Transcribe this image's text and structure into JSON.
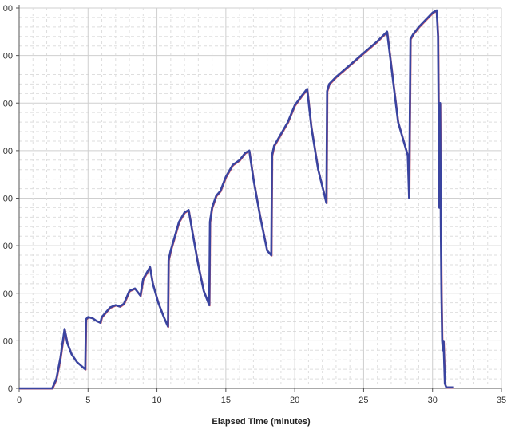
{
  "chart_data": {
    "type": "line",
    "title": "",
    "xlabel": "Elapsed Time (minutes)",
    "ylabel": "",
    "xlim": [
      0,
      35
    ],
    "ylim": [
      0,
      8
    ],
    "xticks": [
      "0",
      "5",
      "10",
      "15",
      "20",
      "25",
      "30",
      "35"
    ],
    "yticks_partial": [
      "0",
      "00",
      "00",
      "00",
      "00",
      "00",
      "00",
      "00",
      "00"
    ],
    "grid": true,
    "legend": "none",
    "colors": {
      "series_main": "#3a44a0",
      "series_trace": "#d0303c",
      "grid_major": "#cfcfcf",
      "grid_minor": "#dedede",
      "axis": "#555555"
    },
    "series": [
      {
        "color": "#3a44a0",
        "x": [
          0.0,
          2.4,
          2.7,
          3.0,
          3.3,
          3.5,
          3.8,
          4.2,
          4.6,
          4.8,
          4.85,
          5.0,
          5.3,
          5.6,
          5.9,
          6.0,
          6.3,
          6.6,
          7.0,
          7.3,
          7.6,
          8.0,
          8.4,
          8.8,
          9.0,
          9.3,
          9.5,
          9.7,
          10.1,
          10.5,
          10.8,
          10.85,
          11.0,
          11.3,
          11.6,
          12.0,
          12.3,
          12.6,
          13.0,
          13.4,
          13.8,
          13.85,
          14.0,
          14.3,
          14.6,
          15.0,
          15.5,
          16.0,
          16.4,
          16.7,
          17.0,
          17.5,
          18.0,
          18.3,
          18.35,
          18.5,
          19.0,
          19.5,
          20.0,
          20.5,
          20.9,
          21.2,
          21.7,
          22.3,
          22.35,
          22.5,
          23.0,
          24.0,
          25.0,
          26.0,
          26.7,
          27.0,
          27.5,
          28.2,
          28.3,
          28.4,
          28.6,
          29.0,
          29.5,
          30.0,
          30.3,
          30.4,
          30.5,
          30.55,
          30.6,
          30.65,
          30.7,
          30.75,
          30.8,
          30.9,
          31.0,
          31.1,
          31.5
        ],
        "y": [
          0.0,
          0.0,
          0.2,
          0.65,
          1.25,
          0.95,
          0.72,
          0.55,
          0.45,
          0.4,
          1.45,
          1.5,
          1.48,
          1.42,
          1.38,
          1.5,
          1.6,
          1.7,
          1.75,
          1.72,
          1.78,
          2.05,
          2.1,
          1.95,
          2.3,
          2.45,
          2.55,
          2.2,
          1.8,
          1.5,
          1.3,
          2.7,
          2.9,
          3.2,
          3.5,
          3.7,
          3.75,
          3.25,
          2.6,
          2.05,
          1.75,
          3.5,
          3.8,
          4.05,
          4.15,
          4.45,
          4.7,
          4.8,
          4.95,
          5.0,
          4.4,
          3.6,
          2.9,
          2.8,
          4.9,
          5.1,
          5.35,
          5.6,
          5.95,
          6.15,
          6.3,
          5.5,
          4.6,
          3.9,
          6.25,
          6.4,
          6.55,
          6.8,
          7.05,
          7.3,
          7.5,
          6.8,
          5.6,
          4.9,
          4.0,
          7.35,
          7.45,
          7.6,
          7.75,
          7.9,
          7.95,
          7.4,
          3.8,
          6.0,
          3.5,
          2.0,
          1.0,
          0.8,
          1.0,
          0.1,
          0.02,
          0.02,
          0.02
        ]
      }
    ]
  }
}
